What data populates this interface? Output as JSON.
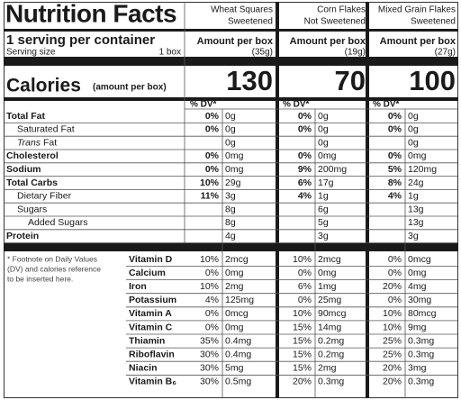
{
  "header": {
    "title": "Nutrition Facts",
    "servings": "1 serving per container",
    "serving_size_label": "Serving size",
    "serving_size": "1 box",
    "calories_label": "Calories",
    "calories_note": "(amount per box)",
    "footnote": [
      "* Footnote on Daily Values",
      "(DV) and calories reference",
      "to be inserted here."
    ]
  },
  "products": [
    {
      "name": "Wheat Squares",
      "subname": "Sweetened",
      "amount_label": "Amount per box",
      "weight": "(35g)",
      "calories": 130,
      "dv_header": "% DV*"
    },
    {
      "name": "Corn Flakes",
      "subname": "Not Sweetened",
      "amount_label": "Amount per box",
      "weight": "(19g)",
      "calories": 70,
      "dv_header": "% DV*"
    },
    {
      "name": "Mixed Grain Flakes",
      "subname": "Sweetened",
      "amount_label": "Amount per box",
      "weight": "(27g)",
      "calories": 100,
      "dv_header": "% DV*"
    }
  ],
  "nutrients": [
    {
      "label": "Total Fat",
      "values": [
        {
          "dv": "0%",
          "amount": "0g"
        },
        {
          "dv": "0%",
          "amount": "0g"
        },
        {
          "dv": "0%",
          "amount": "0g"
        }
      ]
    },
    {
      "label": "Saturated Fat",
      "values": [
        {
          "dv": "0%",
          "amount": "0g"
        },
        {
          "dv": "0%",
          "amount": "0g"
        },
        {
          "dv": "0%",
          "amount": "0g"
        }
      ]
    },
    {
      "label_italic": "Trans",
      "label": "Fat",
      "values": [
        {
          "amount": "0g"
        },
        {
          "amount": "0g"
        },
        {
          "amount": "0g"
        }
      ]
    },
    {
      "label": "Cholesterol",
      "values": [
        {
          "dv": "0%",
          "amount": "0mg"
        },
        {
          "dv": "0%",
          "amount": "0mg"
        },
        {
          "dv": "0%",
          "amount": "0mg"
        }
      ]
    },
    {
      "label": "Sodium",
      "values": [
        {
          "dv": "0%",
          "amount": "0mg"
        },
        {
          "dv": "9%",
          "amount": "200mg"
        },
        {
          "dv": "5%",
          "amount": "120mg"
        }
      ]
    },
    {
      "label": "Total Carbs",
      "values": [
        {
          "dv": "10%",
          "amount": "29g"
        },
        {
          "dv": "6%",
          "amount": "17g"
        },
        {
          "dv": "8%",
          "amount": "24g"
        }
      ]
    },
    {
      "label": "Dietary Fiber",
      "values": [
        {
          "dv": "11%",
          "amount": "3g"
        },
        {
          "dv": "4%",
          "amount": "1g"
        },
        {
          "dv": "4%",
          "amount": "1g"
        }
      ]
    },
    {
      "label": "Sugars",
      "values": [
        {
          "amount": "8g"
        },
        {
          "amount": "6g"
        },
        {
          "amount": "13g"
        }
      ]
    },
    {
      "label": "Added Sugars",
      "values": [
        {
          "amount": "8g"
        },
        {
          "amount": "5g"
        },
        {
          "amount": "13g"
        }
      ]
    },
    {
      "label": "Protein",
      "values": [
        {
          "amount": "4g"
        },
        {
          "amount": "3g"
        },
        {
          "amount": "3g"
        }
      ]
    }
  ],
  "vitamins": [
    {
      "label": "Vitamin D",
      "values": [
        {
          "dv": "10%",
          "amount": "2mcg"
        },
        {
          "dv": "10%",
          "amount": "2mcg"
        },
        {
          "dv": "0%",
          "amount": "0mcg"
        }
      ]
    },
    {
      "label": "Calcium",
      "values": [
        {
          "dv": "0%",
          "amount": "0mg"
        },
        {
          "dv": "0%",
          "amount": "0mg"
        },
        {
          "dv": "0%",
          "amount": "0mg"
        }
      ]
    },
    {
      "label": "Iron",
      "values": [
        {
          "dv": "10%",
          "amount": "2mg"
        },
        {
          "dv": "6%",
          "amount": "1mg"
        },
        {
          "dv": "20%",
          "amount": "4mg"
        }
      ]
    },
    {
      "label": "Potassium",
      "values": [
        {
          "dv": "4%",
          "amount": "125mg"
        },
        {
          "dv": "0%",
          "amount": "25mg"
        },
        {
          "dv": "0%",
          "amount": "30mg"
        }
      ]
    },
    {
      "label": "Vitamin A",
      "values": [
        {
          "dv": "0%",
          "amount": "0mcg"
        },
        {
          "dv": "10%",
          "amount": "90mcg"
        },
        {
          "dv": "10%",
          "amount": "80mcg"
        }
      ]
    },
    {
      "label": "Vitamin C",
      "values": [
        {
          "dv": "0%",
          "amount": "0mg"
        },
        {
          "dv": "15%",
          "amount": "14mg"
        },
        {
          "dv": "10%",
          "amount": "9mg"
        }
      ]
    },
    {
      "label": "Thiamin",
      "values": [
        {
          "dv": "35%",
          "amount": "0.4mg"
        },
        {
          "dv": "15%",
          "amount": "0.2mg"
        },
        {
          "dv": "25%",
          "amount": "0.3mg"
        }
      ]
    },
    {
      "label": "Riboflavin",
      "values": [
        {
          "dv": "30%",
          "amount": "0.4mg"
        },
        {
          "dv": "15%",
          "amount": "0.2mg"
        },
        {
          "dv": "25%",
          "amount": "0.3mg"
        }
      ]
    },
    {
      "label": "Niacin",
      "values": [
        {
          "dv": "30%",
          "amount": "5mg"
        },
        {
          "dv": "15%",
          "amount": "2mg"
        },
        {
          "dv": "20%",
          "amount": "3mg"
        }
      ]
    },
    {
      "label": "Vitamin B₆",
      "values": [
        {
          "dv": "30%",
          "amount": "0.5mg"
        },
        {
          "dv": "20%",
          "amount": "0.3mg"
        },
        {
          "dv": "20%",
          "amount": "0.3mg"
        }
      ]
    }
  ]
}
